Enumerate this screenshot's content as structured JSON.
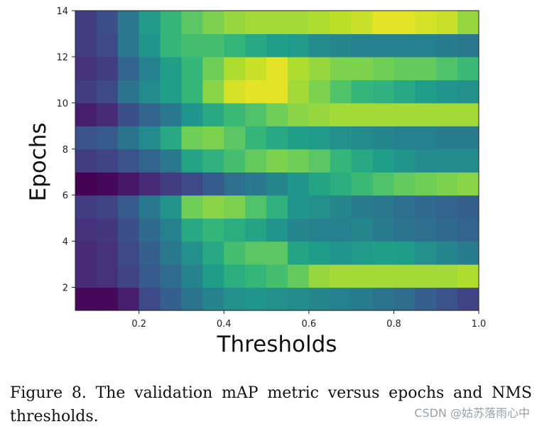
{
  "chart_data": {
    "type": "heatmap",
    "title": "",
    "xlabel": "Thresholds",
    "ylabel": "Epochs",
    "colormap": "viridis",
    "xlim": [
      0.05,
      1.0
    ],
    "ylim": [
      1,
      14
    ],
    "x_ticks": [
      0.2,
      0.4,
      0.6,
      0.8,
      1.0
    ],
    "x_tick_labels": [
      "0.2",
      "0.4",
      "0.6",
      "0.8",
      "1.0"
    ],
    "y_ticks": [
      2,
      4,
      6,
      8,
      10,
      12,
      14
    ],
    "y_tick_labels": [
      "2",
      "4",
      "6",
      "8",
      "10",
      "12",
      "14"
    ],
    "x_bins": 19,
    "y_bins": 13,
    "value_range": [
      0,
      1
    ],
    "rows_bottom_to_top": [
      [
        0.02,
        0.02,
        0.08,
        0.22,
        0.3,
        0.38,
        0.45,
        0.5,
        0.52,
        0.5,
        0.48,
        0.46,
        0.44,
        0.42,
        0.38,
        0.35,
        0.3,
        0.25,
        0.2
      ],
      [
        0.12,
        0.14,
        0.2,
        0.28,
        0.35,
        0.45,
        0.55,
        0.62,
        0.66,
        0.7,
        0.76,
        0.84,
        0.86,
        0.86,
        0.86,
        0.86,
        0.86,
        0.86,
        0.88
      ],
      [
        0.12,
        0.14,
        0.22,
        0.3,
        0.4,
        0.5,
        0.6,
        0.7,
        0.74,
        0.74,
        0.58,
        0.55,
        0.52,
        0.54,
        0.56,
        0.55,
        0.5,
        0.46,
        0.42
      ],
      [
        0.14,
        0.16,
        0.24,
        0.34,
        0.44,
        0.6,
        0.66,
        0.62,
        0.58,
        0.52,
        0.46,
        0.44,
        0.44,
        0.46,
        0.42,
        0.38,
        0.36,
        0.34,
        0.32
      ],
      [
        0.18,
        0.2,
        0.28,
        0.4,
        0.52,
        0.78,
        0.82,
        0.8,
        0.72,
        0.64,
        0.52,
        0.5,
        0.46,
        0.42,
        0.4,
        0.36,
        0.34,
        0.32,
        0.3
      ],
      [
        0.0,
        0.02,
        0.06,
        0.12,
        0.18,
        0.22,
        0.28,
        0.36,
        0.4,
        0.46,
        0.52,
        0.58,
        0.62,
        0.68,
        0.72,
        0.76,
        0.78,
        0.8,
        0.82
      ],
      [
        0.18,
        0.2,
        0.26,
        0.32,
        0.4,
        0.58,
        0.64,
        0.7,
        0.76,
        0.8,
        0.78,
        0.74,
        0.66,
        0.6,
        0.56,
        0.52,
        0.48,
        0.48,
        0.48
      ],
      [
        0.26,
        0.28,
        0.38,
        0.48,
        0.6,
        0.78,
        0.8,
        0.74,
        0.66,
        0.6,
        0.56,
        0.54,
        0.5,
        0.48,
        0.46,
        0.44,
        0.44,
        0.42,
        0.42
      ],
      [
        0.08,
        0.12,
        0.24,
        0.32,
        0.4,
        0.52,
        0.6,
        0.68,
        0.72,
        0.78,
        0.82,
        0.84,
        0.86,
        0.86,
        0.86,
        0.86,
        0.86,
        0.86,
        0.86
      ],
      [
        0.18,
        0.22,
        0.38,
        0.48,
        0.56,
        0.66,
        0.82,
        0.94,
        0.96,
        0.96,
        0.86,
        0.8,
        0.72,
        0.66,
        0.64,
        0.6,
        0.56,
        0.52,
        0.5
      ],
      [
        0.14,
        0.18,
        0.32,
        0.44,
        0.56,
        0.66,
        0.78,
        0.88,
        0.92,
        0.96,
        0.88,
        0.84,
        0.8,
        0.8,
        0.78,
        0.76,
        0.76,
        0.72,
        0.68
      ],
      [
        0.18,
        0.22,
        0.4,
        0.52,
        0.66,
        0.7,
        0.7,
        0.66,
        0.6,
        0.56,
        0.54,
        0.48,
        0.46,
        0.44,
        0.44,
        0.44,
        0.44,
        0.42,
        0.4
      ],
      [
        0.18,
        0.24,
        0.4,
        0.54,
        0.66,
        0.74,
        0.8,
        0.84,
        0.86,
        0.86,
        0.86,
        0.88,
        0.9,
        0.92,
        0.96,
        0.96,
        0.94,
        0.92,
        0.84
      ]
    ]
  },
  "caption": "Figure 8. The validation mAP metric versus epochs and NMS thresholds.",
  "watermark": "CSDN @姑苏落雨心中"
}
